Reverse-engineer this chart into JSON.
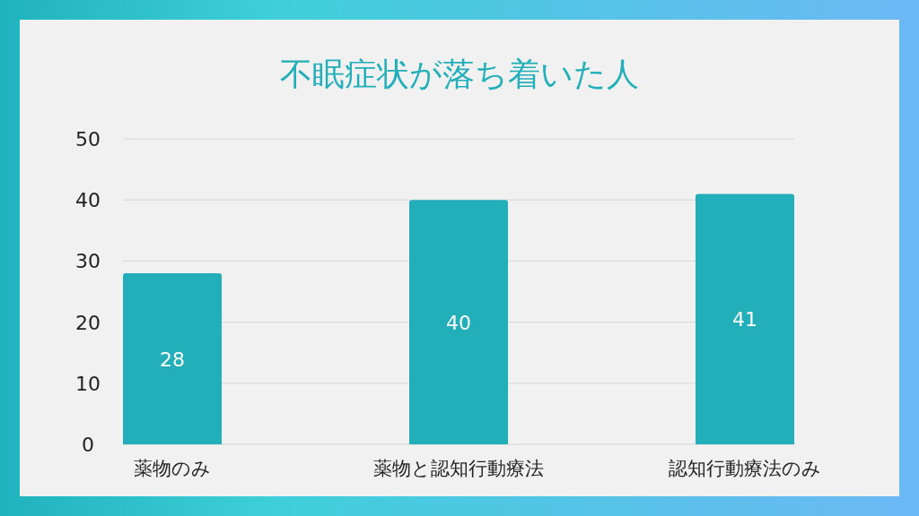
{
  "chart_data": {
    "type": "bar",
    "title": "不眠症状が落ち着いた人",
    "categories": [
      "薬物のみ",
      "薬物と認知行動療法",
      "認知行動療法のみ"
    ],
    "values": [
      28,
      40,
      41
    ],
    "color": "#22afba",
    "ylim": [
      0,
      50
    ],
    "yticks": [
      0,
      10,
      20,
      30,
      40,
      50
    ],
    "grid": "y",
    "data_labels": true
  }
}
